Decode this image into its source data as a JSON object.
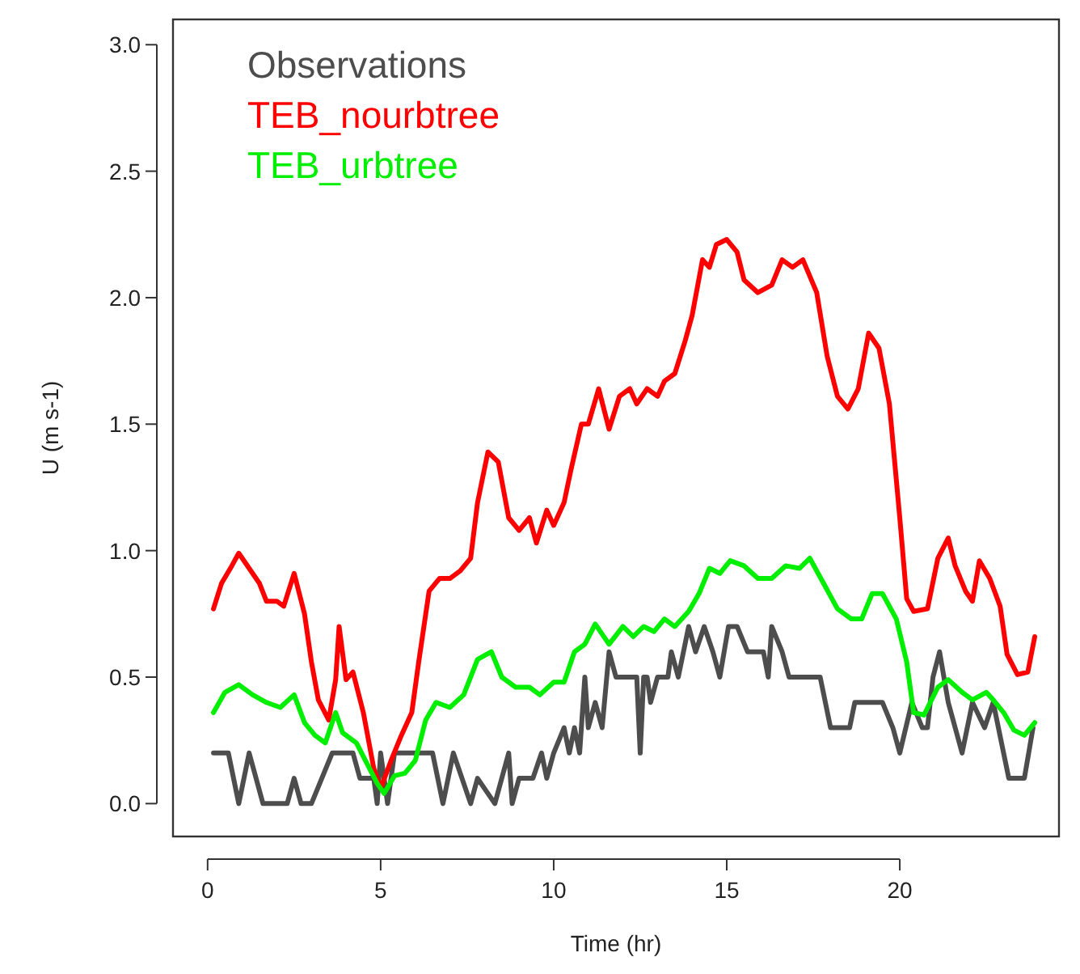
{
  "chart_data": {
    "type": "line",
    "xlabel": "Time (hr)",
    "ylabel": "U (m s-1)",
    "xlim": [
      -1,
      24.6
    ],
    "ylim": [
      -0.13,
      3.1
    ],
    "xticks": [
      0,
      5,
      10,
      15,
      20
    ],
    "yticks": [
      {
        "value": 0,
        "label": "0.0"
      },
      {
        "value": 0.5,
        "label": "0.5"
      },
      {
        "value": 1,
        "label": "1.0"
      },
      {
        "value": 1.5,
        "label": "1.5"
      },
      {
        "value": 2,
        "label": "2.0"
      },
      {
        "value": 2.5,
        "label": "2.5"
      },
      {
        "value": 3,
        "label": "3.0"
      }
    ],
    "legend": "top left",
    "grid": false,
    "line_style": "solid",
    "marker": "none",
    "series": [
      {
        "name": "Observations",
        "color": "#4d4d4d",
        "x": [
          0.17,
          0.6,
          0.9,
          1.2,
          1.4,
          1.6,
          2.3,
          2.5,
          2.7,
          3.0,
          3.3,
          3.6,
          4.2,
          4.4,
          4.8,
          4.9,
          5.0,
          5.2,
          5.4,
          6.5,
          6.8,
          7.1,
          7.6,
          7.8,
          8.3,
          8.7,
          8.8,
          9.0,
          9.4,
          9.65,
          9.8,
          10.0,
          10.3,
          10.45,
          10.6,
          10.75,
          10.9,
          11.0,
          11.2,
          11.4,
          11.6,
          11.8,
          12.4,
          12.5,
          12.6,
          12.7,
          12.8,
          13.0,
          13.3,
          13.4,
          13.6,
          13.9,
          14.1,
          14.35,
          14.6,
          14.8,
          15.05,
          15.3,
          15.6,
          16.06,
          16.2,
          16.3,
          16.6,
          16.8,
          17.7,
          18.0,
          18.55,
          18.7,
          19.5,
          19.8,
          20.0,
          20.35,
          20.65,
          20.8,
          20.96,
          21.15,
          21.4,
          21.8,
          22.1,
          22.45,
          22.7,
          23.15,
          23.6,
          23.85
        ],
        "values": [
          0.2,
          0.2,
          0,
          0.2,
          0.1,
          0,
          0,
          0.1,
          0,
          0,
          0.1,
          0.2,
          0.2,
          0.1,
          0.1,
          0,
          0.2,
          0,
          0.2,
          0.2,
          0,
          0.2,
          0,
          0.1,
          0,
          0.2,
          0,
          0.1,
          0.1,
          0.2,
          0.1,
          0.2,
          0.3,
          0.2,
          0.3,
          0.2,
          0.5,
          0.3,
          0.4,
          0.3,
          0.6,
          0.5,
          0.5,
          0.2,
          0.5,
          0.5,
          0.4,
          0.5,
          0.5,
          0.6,
          0.5,
          0.7,
          0.6,
          0.7,
          0.6,
          0.5,
          0.7,
          0.7,
          0.6,
          0.6,
          0.5,
          0.7,
          0.6,
          0.5,
          0.5,
          0.3,
          0.3,
          0.4,
          0.4,
          0.3,
          0.2,
          0.4,
          0.3,
          0.3,
          0.5,
          0.6,
          0.4,
          0.2,
          0.4,
          0.3,
          0.4,
          0.1,
          0.1,
          0.3
        ]
      },
      {
        "name": "TEB_nourbtree",
        "color": "#ff0000",
        "x": [
          0.17,
          0.4,
          0.7,
          0.9,
          1.2,
          1.5,
          1.7,
          2.0,
          2.2,
          2.5,
          2.8,
          3.0,
          3.2,
          3.5,
          3.7,
          3.8,
          4.0,
          4.2,
          4.5,
          4.8,
          5.0,
          5.3,
          5.6,
          5.9,
          6.1,
          6.4,
          6.7,
          7.0,
          7.3,
          7.6,
          7.8,
          8.1,
          8.4,
          8.7,
          9.0,
          9.3,
          9.5,
          9.8,
          10.0,
          10.3,
          10.5,
          10.8,
          11.0,
          11.3,
          11.6,
          11.9,
          12.2,
          12.4,
          12.7,
          13.0,
          13.2,
          13.5,
          13.8,
          14.0,
          14.3,
          14.5,
          14.7,
          15.0,
          15.3,
          15.5,
          15.9,
          16.3,
          16.6,
          16.9,
          17.2,
          17.6,
          17.9,
          18.2,
          18.5,
          18.8,
          19.1,
          19.4,
          19.7,
          20.0,
          20.2,
          20.4,
          20.8,
          21.1,
          21.4,
          21.6,
          21.9,
          22.1,
          22.3,
          22.6,
          22.9,
          23.1,
          23.4,
          23.7,
          23.9
        ],
        "values": [
          0.77,
          0.87,
          0.94,
          0.99,
          0.93,
          0.87,
          0.8,
          0.8,
          0.78,
          0.91,
          0.75,
          0.56,
          0.41,
          0.33,
          0.49,
          0.7,
          0.49,
          0.52,
          0.36,
          0.14,
          0.06,
          0.17,
          0.27,
          0.36,
          0.56,
          0.84,
          0.89,
          0.89,
          0.92,
          0.97,
          1.19,
          1.39,
          1.35,
          1.13,
          1.08,
          1.13,
          1.03,
          1.16,
          1.1,
          1.19,
          1.32,
          1.5,
          1.5,
          1.64,
          1.48,
          1.61,
          1.64,
          1.58,
          1.64,
          1.61,
          1.67,
          1.7,
          1.83,
          1.93,
          2.15,
          2.12,
          2.21,
          2.23,
          2.18,
          2.07,
          2.02,
          2.05,
          2.15,
          2.12,
          2.15,
          2.02,
          1.77,
          1.61,
          1.56,
          1.64,
          1.86,
          1.8,
          1.58,
          1.13,
          0.81,
          0.76,
          0.77,
          0.97,
          1.05,
          0.94,
          0.84,
          0.8,
          0.96,
          0.89,
          0.78,
          0.59,
          0.51,
          0.52,
          0.66
        ]
      },
      {
        "name": "TEB_urbtree",
        "color": "#00ee00",
        "x": [
          0.17,
          0.5,
          0.9,
          1.3,
          1.7,
          2.1,
          2.5,
          2.8,
          3.1,
          3.4,
          3.7,
          3.9,
          4.3,
          4.6,
          4.9,
          5.1,
          5.4,
          5.7,
          6.0,
          6.3,
          6.6,
          7.0,
          7.4,
          7.8,
          8.2,
          8.5,
          8.9,
          9.3,
          9.6,
          10.0,
          10.3,
          10.6,
          10.9,
          11.2,
          11.6,
          12.0,
          12.3,
          12.6,
          12.9,
          13.2,
          13.5,
          13.9,
          14.2,
          14.5,
          14.8,
          15.1,
          15.5,
          15.9,
          16.3,
          16.7,
          17.1,
          17.4,
          17.8,
          18.2,
          18.6,
          18.9,
          19.2,
          19.5,
          19.9,
          20.2,
          20.4,
          20.7,
          21.1,
          21.4,
          21.8,
          22.1,
          22.5,
          22.7,
          23.0,
          23.3,
          23.6,
          23.9
        ],
        "values": [
          0.36,
          0.44,
          0.47,
          0.43,
          0.4,
          0.38,
          0.43,
          0.32,
          0.27,
          0.24,
          0.36,
          0.28,
          0.24,
          0.16,
          0.08,
          0.04,
          0.11,
          0.12,
          0.17,
          0.33,
          0.4,
          0.38,
          0.43,
          0.57,
          0.6,
          0.5,
          0.46,
          0.46,
          0.43,
          0.48,
          0.48,
          0.6,
          0.63,
          0.71,
          0.63,
          0.7,
          0.66,
          0.7,
          0.68,
          0.73,
          0.7,
          0.76,
          0.83,
          0.93,
          0.91,
          0.96,
          0.94,
          0.89,
          0.89,
          0.94,
          0.93,
          0.97,
          0.87,
          0.77,
          0.73,
          0.73,
          0.83,
          0.83,
          0.73,
          0.56,
          0.36,
          0.35,
          0.46,
          0.49,
          0.44,
          0.41,
          0.44,
          0.41,
          0.36,
          0.29,
          0.27,
          0.32
        ]
      }
    ]
  }
}
